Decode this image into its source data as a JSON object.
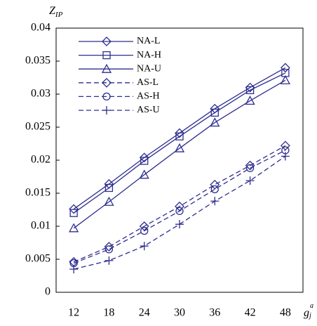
{
  "chart_data": {
    "type": "line",
    "y_label": "Z",
    "y_label_sub": "IP",
    "x_label": "g",
    "x_label_sub": "j",
    "x_label_sup": "a",
    "x": [
      12,
      18,
      24,
      30,
      36,
      42,
      48
    ],
    "xlim": [
      9,
      51
    ],
    "xticks": [
      12,
      18,
      24,
      30,
      36,
      42,
      48
    ],
    "ylim": [
      0,
      0.04
    ],
    "yticks": [
      0,
      0.005,
      0.01,
      0.015,
      0.02,
      0.025,
      0.03,
      0.035,
      0.04
    ],
    "legend": "top-left",
    "series": [
      {
        "name": "NA-L",
        "color": "#2e2e8f",
        "marker": "diamond",
        "dash": "solid",
        "values": [
          0.0126,
          0.0164,
          0.0204,
          0.0241,
          0.0278,
          0.031,
          0.034
        ]
      },
      {
        "name": "NA-H",
        "color": "#2e2e8f",
        "marker": "square",
        "dash": "solid",
        "values": [
          0.012,
          0.0158,
          0.0199,
          0.0236,
          0.0272,
          0.0306,
          0.0332
        ]
      },
      {
        "name": "NA-U",
        "color": "#2e2e8f",
        "marker": "triangle",
        "dash": "solid",
        "values": [
          0.0097,
          0.0137,
          0.0178,
          0.0218,
          0.0257,
          0.029,
          0.0321
        ]
      },
      {
        "name": "AS-L",
        "color": "#2e2e8f",
        "marker": "diamond",
        "dash": "dashed",
        "values": [
          0.0046,
          0.0069,
          0.01,
          0.013,
          0.0163,
          0.0192,
          0.0222
        ]
      },
      {
        "name": "AS-H",
        "color": "#2e2e8f",
        "marker": "circle",
        "dash": "dashed",
        "values": [
          0.0044,
          0.0065,
          0.0093,
          0.0123,
          0.0156,
          0.0188,
          0.0215
        ]
      },
      {
        "name": "AS-U",
        "color": "#2e2e8f",
        "marker": "plus",
        "dash": "dashed",
        "values": [
          0.0035,
          0.0048,
          0.007,
          0.0103,
          0.0138,
          0.0169,
          0.0206
        ]
      }
    ]
  }
}
